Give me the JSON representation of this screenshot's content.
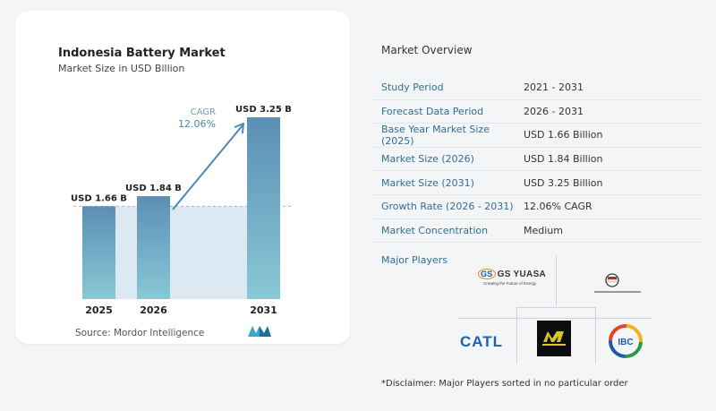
{
  "chart_data": {
    "type": "bar",
    "title": "Indonesia Battery Market",
    "subtitle": "Market Size in USD Billion",
    "categories": [
      "2025",
      "2026",
      "2031"
    ],
    "values": [
      1.66,
      1.84,
      3.25
    ],
    "data_labels": [
      "USD 1.66 B",
      "USD 1.84 B",
      "USD 3.25 B"
    ],
    "ylim": [
      0,
      3.25
    ],
    "cagr_label": "CAGR",
    "cagr_value": "12.06%",
    "source": "Source:  Mordor Intelligence",
    "colors": {
      "bar_top": "#5b8fb5",
      "bar_bottom": "#88c8d6",
      "band": "#dce8f2",
      "arrow": "#4a88b4"
    }
  },
  "overview": {
    "title": "Market Overview",
    "rows": [
      {
        "label": "Study Period",
        "value": "2021 - 2031"
      },
      {
        "label": "Forecast Data Period",
        "value": "2026 - 2031"
      },
      {
        "label": "Base Year Market Size (2025)",
        "value": "USD 1.66 Billion"
      },
      {
        "label": "Market Size (2026)",
        "value": "USD 1.84 Billion"
      },
      {
        "label": "Market Size (2031)",
        "value": "USD 3.25 Billion"
      },
      {
        "label": "Growth Rate (2026 - 2031)",
        "value": "12.06% CAGR"
      },
      {
        "label": "Market Concentration",
        "value": "Medium"
      }
    ]
  },
  "players": {
    "title": "Major Players",
    "logos": {
      "gs_yuasa": "GS YUASA",
      "gs_yuasa_tagline": "Creating the Future of Energy",
      "catl": "CATL",
      "ibc": "IBC"
    }
  },
  "disclaimer": "*Disclaimer: Major Players sorted in no particular order"
}
